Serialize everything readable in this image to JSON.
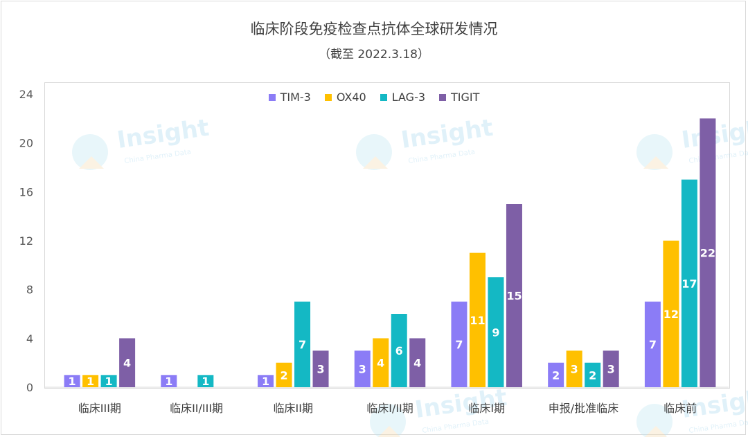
{
  "header": {
    "title": "临床阶段免疫检查点抗体全球研发情况",
    "subtitle": "（截至 2022.3.18）"
  },
  "watermark": {
    "text": "Insight",
    "subtext": "China Pharma Data"
  },
  "chart_data": {
    "type": "bar",
    "title": "临床阶段免疫检查点抗体全球研发情况",
    "subtitle": "（截至 2022.3.18）",
    "categories": [
      "临床III期",
      "临床II/III期",
      "临床II期",
      "临床I/II期",
      "临床I期",
      "申报/批准临床",
      "临床前"
    ],
    "series": [
      {
        "name": "TIM-3",
        "color": "#8b7cf6",
        "values": [
          1,
          1,
          1,
          3,
          7,
          2,
          7
        ]
      },
      {
        "name": "OX40",
        "color": "#ffc000",
        "values": [
          1,
          null,
          2,
          4,
          11,
          3,
          12
        ]
      },
      {
        "name": "LAG-3",
        "color": "#14b8c4",
        "values": [
          1,
          1,
          7,
          6,
          9,
          2,
          17
        ]
      },
      {
        "name": "TIGIT",
        "color": "#7e5fa6",
        "values": [
          4,
          null,
          3,
          4,
          15,
          3,
          22
        ]
      }
    ],
    "ylim": [
      0,
      24
    ],
    "yticks": [
      0,
      4,
      8,
      12,
      16,
      20,
      24
    ],
    "grid": false,
    "legend_position": "top-center",
    "data_labels": true
  }
}
